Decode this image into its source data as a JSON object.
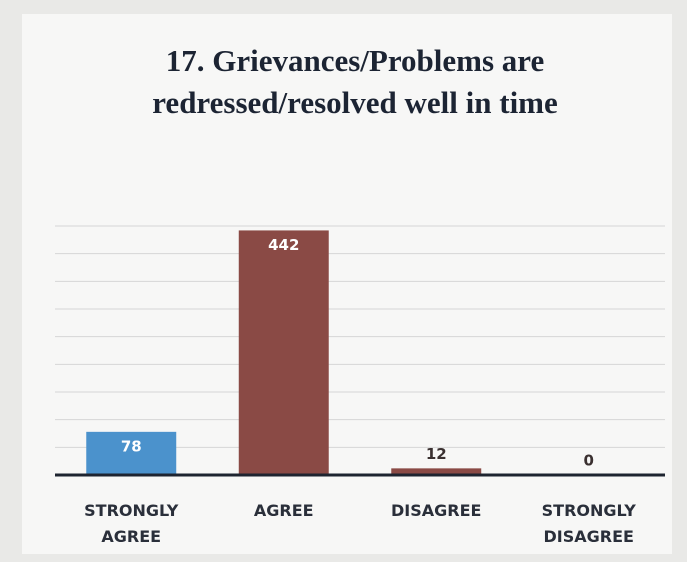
{
  "chart_data": {
    "type": "bar",
    "title": "17. Grievances/Problems are redressed/resolved well in time",
    "categories": [
      "STRONGLY AGREE",
      "AGREE",
      "DISAGREE",
      "STRONGLY DISAGREE"
    ],
    "values": [
      78,
      442,
      12,
      0
    ],
    "colors": [
      "#4b92cc",
      "#8a4a45",
      "#8a4a45",
      "#8a4a45"
    ],
    "ylim": [
      0,
      450
    ],
    "yticks": [
      0,
      50,
      100,
      150,
      200,
      250,
      300,
      350,
      400,
      450
    ],
    "grid": true
  }
}
